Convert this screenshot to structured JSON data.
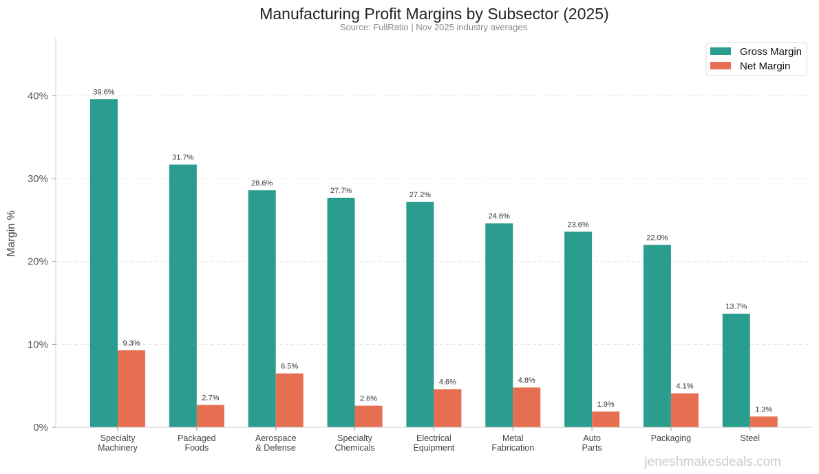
{
  "chart_data": {
    "type": "bar",
    "title": "Manufacturing Profit Margins by Subsector (2025)",
    "subtitle": "Source: FullRatio  |  Nov 2025 industry averages",
    "xlabel": "",
    "ylabel": "Margin %",
    "ylim": [
      0,
      47
    ],
    "yticks": [
      0,
      10,
      20,
      30,
      40
    ],
    "ytick_labels": [
      "0%",
      "10%",
      "20%",
      "30%",
      "40%"
    ],
    "grid": "y dashed",
    "legend_position": "top-right",
    "categories": [
      [
        "Specialty",
        "Machinery"
      ],
      [
        "Packaged",
        "Foods"
      ],
      [
        "Aerospace",
        "& Defense"
      ],
      [
        "Specialty",
        "Chemicals"
      ],
      [
        "Electrical",
        "Equipment"
      ],
      [
        "Metal",
        "Fabrication"
      ],
      [
        "Auto",
        "Parts"
      ],
      [
        "Packaging"
      ],
      [
        "Steel"
      ]
    ],
    "series": [
      {
        "name": "Gross Margin",
        "color": "#2a9d8f",
        "values": [
          39.6,
          31.7,
          28.6,
          27.7,
          27.2,
          24.6,
          23.6,
          22.0,
          13.7
        ]
      },
      {
        "name": "Net Margin",
        "color": "#e76f51",
        "values": [
          9.3,
          2.7,
          6.5,
          2.6,
          4.6,
          4.8,
          1.9,
          4.1,
          1.3
        ]
      }
    ],
    "watermark": "jeneshmakesdeals.com"
  }
}
